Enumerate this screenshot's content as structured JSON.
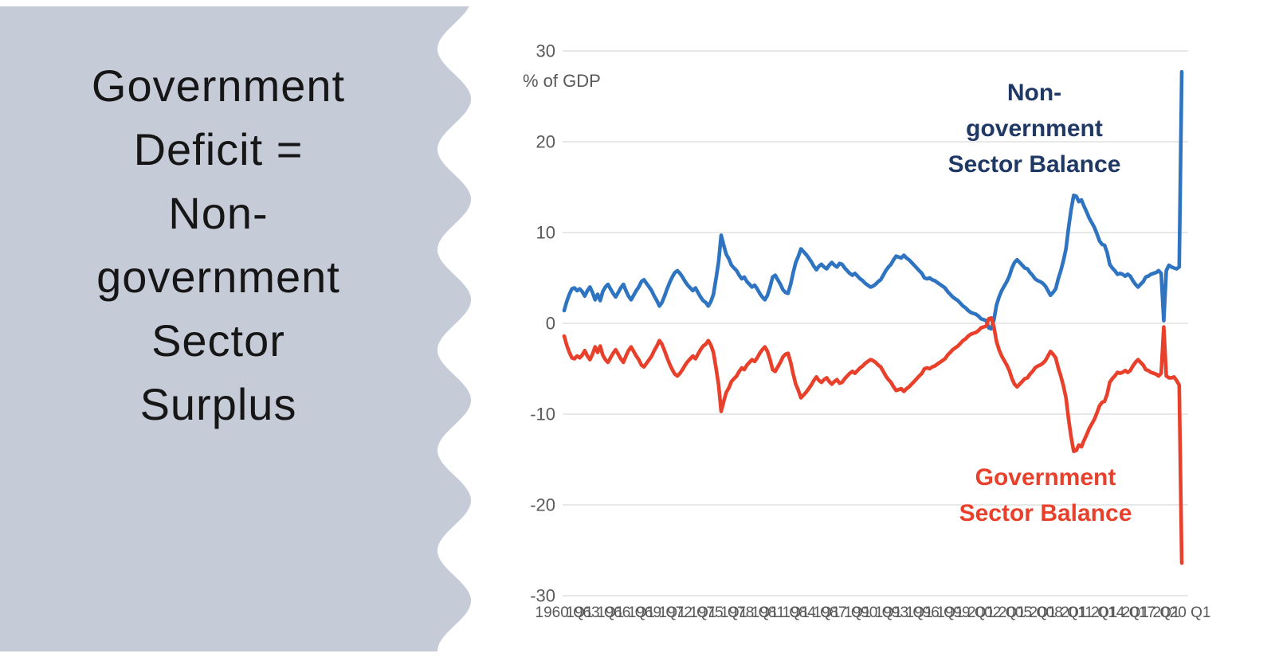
{
  "slide": {
    "title_lines": "Government\nDeficit =\nNon-\ngovernment\nSector\nSurplus",
    "panel_color": "#C6CBD8",
    "title_color": "#161616"
  },
  "chart_data": {
    "type": "line",
    "title": "",
    "unit_label": "% of GDP",
    "x_frequency": "quarterly",
    "x_range": [
      "1960 Q1",
      "2020 Q1"
    ],
    "x_tick_step_quarters": 12,
    "x_tick_labels": [
      "1960 Q1",
      "1963 Q1",
      "1966 Q1",
      "1969 Q1",
      "1972 Q1",
      "1975 Q1",
      "1978 Q1",
      "1981 Q1",
      "1984 Q1",
      "1987 Q1",
      "1990 Q1",
      "1993 Q1",
      "1996 Q1",
      "1999 Q1",
      "2002 Q1",
      "2005 Q1",
      "2008 Q1",
      "2011 Q1",
      "2014 Q1",
      "2017 Q1",
      "2020 Q1"
    ],
    "axes": {
      "y_min": -30,
      "y_max": 30,
      "y_step": 10,
      "y_tick_labels": [
        "30",
        "20",
        "10",
        "0",
        "-10",
        "-20",
        "-30"
      ],
      "grid": true
    },
    "colors": {
      "non_government_line": "#2E74C0",
      "government_line": "#E8402B",
      "non_government_label": "#1F3864",
      "government_label": "#E8402B",
      "axis_text": "#595959",
      "gridline": "#DBDBDB"
    },
    "annotations": [
      {
        "id": "non_government",
        "lines": [
          "Non-",
          "government",
          "Sector Balance"
        ],
        "color": "#1F3864"
      },
      {
        "id": "government",
        "lines": [
          "Government",
          "Sector Balance"
        ],
        "color": "#E8402B"
      }
    ],
    "series": [
      {
        "name": "Non-government Sector Balance",
        "color": "#2E74C0",
        "values": [
          1.4,
          2.4,
          3.2,
          3.8,
          3.9,
          3.6,
          3.8,
          3.5,
          3.0,
          3.6,
          4.0,
          3.4,
          2.6,
          3.2,
          2.5,
          3.5,
          4.0,
          4.3,
          3.8,
          3.3,
          2.9,
          3.4,
          3.9,
          4.3,
          3.6,
          3.0,
          2.6,
          3.1,
          3.6,
          4.0,
          4.6,
          4.8,
          4.4,
          4.0,
          3.6,
          3.0,
          2.5,
          1.9,
          2.3,
          3.0,
          3.8,
          4.5,
          5.1,
          5.6,
          5.8,
          5.5,
          5.1,
          4.6,
          4.2,
          3.9,
          3.6,
          3.9,
          3.4,
          2.9,
          2.5,
          2.3,
          1.9,
          2.4,
          3.2,
          4.9,
          6.8,
          9.7,
          8.6,
          7.6,
          7.1,
          6.4,
          6.1,
          5.8,
          5.3,
          4.9,
          5.1,
          4.6,
          4.3,
          4.0,
          4.2,
          3.8,
          3.3,
          2.9,
          2.6,
          3.1,
          4.0,
          5.1,
          5.3,
          4.8,
          4.3,
          3.7,
          3.4,
          3.3,
          4.3,
          5.6,
          6.7,
          7.4,
          8.2,
          7.9,
          7.6,
          7.2,
          6.8,
          6.3,
          5.9,
          6.3,
          6.5,
          6.2,
          6.0,
          6.4,
          6.7,
          6.4,
          6.2,
          6.6,
          6.5,
          6.1,
          5.8,
          5.5,
          5.3,
          5.5,
          5.2,
          4.9,
          4.7,
          4.4,
          4.2,
          4.0,
          4.1,
          4.3,
          4.6,
          4.8,
          5.3,
          5.8,
          6.2,
          6.5,
          7.0,
          7.4,
          7.3,
          7.2,
          7.5,
          7.2,
          7.0,
          6.7,
          6.4,
          6.1,
          5.8,
          5.5,
          5.0,
          4.9,
          5.0,
          4.8,
          4.7,
          4.5,
          4.3,
          4.1,
          3.9,
          3.5,
          3.2,
          2.9,
          2.7,
          2.5,
          2.2,
          1.9,
          1.7,
          1.4,
          1.2,
          1.1,
          1.0,
          0.8,
          0.5,
          0.4,
          0.3,
          -0.5,
          -0.6,
          0.4,
          2.0,
          2.9,
          3.6,
          4.1,
          4.6,
          5.2,
          6.1,
          6.7,
          7.0,
          6.7,
          6.4,
          6.1,
          6.0,
          5.6,
          5.3,
          4.9,
          4.7,
          4.6,
          4.4,
          4.1,
          3.6,
          3.1,
          3.4,
          3.8,
          4.9,
          5.8,
          6.9,
          8.2,
          10.5,
          12.5,
          14.1,
          14.0,
          13.4,
          13.6,
          12.9,
          12.3,
          11.6,
          11.1,
          10.6,
          9.9,
          9.1,
          8.7,
          8.6,
          7.8,
          6.5,
          6.1,
          5.8,
          5.4,
          5.5,
          5.4,
          5.2,
          5.4,
          5.2,
          4.7,
          4.3,
          4.0,
          4.3,
          4.6,
          5.1,
          5.2,
          5.4,
          5.5,
          5.6,
          5.8,
          5.5,
          0.3,
          5.8,
          6.4,
          6.2,
          6.1,
          6.0,
          6.2,
          27.7
        ]
      },
      {
        "name": "Government Sector Balance",
        "color": "#E8402B",
        "values": [
          -1.4,
          -2.4,
          -3.2,
          -3.8,
          -3.9,
          -3.6,
          -3.8,
          -3.5,
          -3.0,
          -3.6,
          -4.0,
          -3.4,
          -2.6,
          -3.2,
          -2.5,
          -3.5,
          -4.0,
          -4.3,
          -3.8,
          -3.3,
          -2.9,
          -3.4,
          -3.9,
          -4.3,
          -3.6,
          -3.0,
          -2.6,
          -3.1,
          -3.6,
          -4.0,
          -4.6,
          -4.8,
          -4.4,
          -4.0,
          -3.6,
          -3.0,
          -2.5,
          -1.9,
          -2.3,
          -3.0,
          -3.8,
          -4.5,
          -5.1,
          -5.6,
          -5.8,
          -5.5,
          -5.1,
          -4.6,
          -4.2,
          -3.9,
          -3.6,
          -3.9,
          -3.4,
          -2.9,
          -2.5,
          -2.3,
          -1.9,
          -2.4,
          -3.2,
          -4.9,
          -6.8,
          -9.7,
          -8.6,
          -7.6,
          -7.1,
          -6.4,
          -6.1,
          -5.8,
          -5.3,
          -4.9,
          -5.1,
          -4.6,
          -4.3,
          -4.0,
          -4.2,
          -3.8,
          -3.3,
          -2.9,
          -2.6,
          -3.1,
          -4.0,
          -5.1,
          -5.3,
          -4.8,
          -4.3,
          -3.7,
          -3.4,
          -3.3,
          -4.3,
          -5.6,
          -6.7,
          -7.4,
          -8.2,
          -7.9,
          -7.6,
          -7.2,
          -6.8,
          -6.3,
          -5.9,
          -6.3,
          -6.5,
          -6.2,
          -6.0,
          -6.4,
          -6.7,
          -6.4,
          -6.2,
          -6.6,
          -6.5,
          -6.1,
          -5.8,
          -5.5,
          -5.3,
          -5.5,
          -5.2,
          -4.9,
          -4.7,
          -4.4,
          -4.2,
          -4.0,
          -4.1,
          -4.3,
          -4.6,
          -4.8,
          -5.3,
          -5.8,
          -6.2,
          -6.5,
          -7.0,
          -7.4,
          -7.3,
          -7.2,
          -7.5,
          -7.2,
          -7.0,
          -6.7,
          -6.4,
          -6.1,
          -5.8,
          -5.5,
          -5.0,
          -4.9,
          -5.0,
          -4.8,
          -4.7,
          -4.5,
          -4.3,
          -4.1,
          -3.9,
          -3.5,
          -3.2,
          -2.9,
          -2.7,
          -2.5,
          -2.2,
          -1.9,
          -1.7,
          -1.4,
          -1.2,
          -1.1,
          -1.0,
          -0.8,
          -0.5,
          -0.4,
          -0.3,
          0.5,
          0.6,
          -0.4,
          -2.0,
          -2.9,
          -3.6,
          -4.1,
          -4.6,
          -5.2,
          -6.1,
          -6.7,
          -7.0,
          -6.7,
          -6.4,
          -6.1,
          -6.0,
          -5.6,
          -5.3,
          -4.9,
          -4.7,
          -4.6,
          -4.4,
          -4.1,
          -3.6,
          -3.1,
          -3.4,
          -3.8,
          -4.9,
          -5.8,
          -6.9,
          -8.2,
          -10.5,
          -12.5,
          -14.1,
          -14.0,
          -13.4,
          -13.6,
          -12.9,
          -12.3,
          -11.6,
          -11.1,
          -10.6,
          -9.9,
          -9.1,
          -8.7,
          -8.6,
          -7.8,
          -6.5,
          -6.1,
          -5.8,
          -5.4,
          -5.5,
          -5.4,
          -5.2,
          -5.4,
          -5.2,
          -4.7,
          -4.3,
          -4.0,
          -4.3,
          -4.6,
          -5.1,
          -5.2,
          -5.4,
          -5.5,
          -5.6,
          -5.8,
          -5.5,
          -0.4,
          -5.8,
          -6.0,
          -6.0,
          -5.9,
          -6.3,
          -6.8,
          -26.4
        ]
      }
    ]
  }
}
